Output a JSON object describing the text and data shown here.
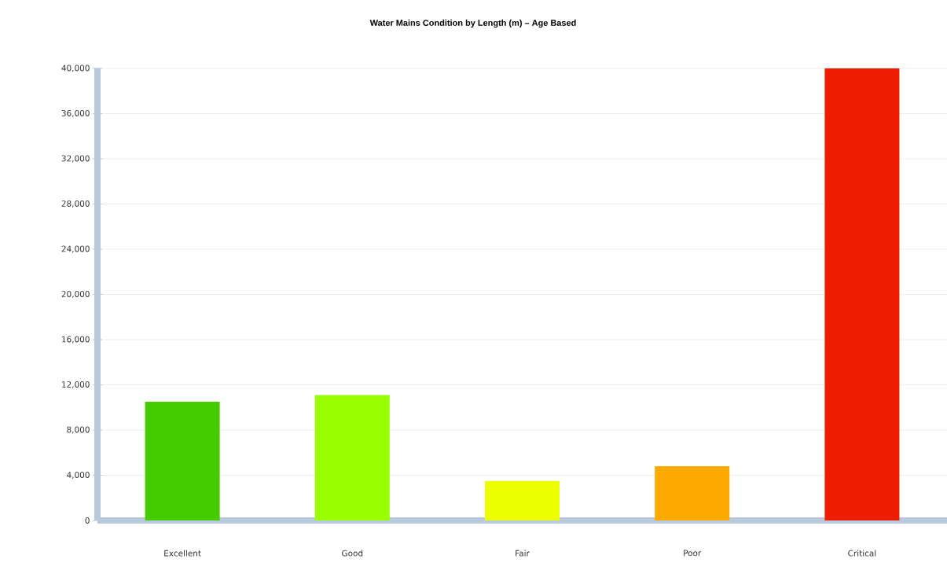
{
  "chart_data": {
    "type": "bar",
    "title": "Water Mains Condition by Length (m) – Age Based",
    "categories": [
      "Excellent",
      "Good",
      "Fair",
      "Poor",
      "Critical"
    ],
    "values": [
      10500,
      11100,
      3500,
      4800,
      40000
    ],
    "colors": [
      "#44cc00",
      "#99ff00",
      "#eeff00",
      "#ffaa00",
      "#ee1c00"
    ],
    "ylim": [
      0,
      40000
    ],
    "yticks": [
      {
        "value": 0,
        "label": "0"
      },
      {
        "value": 4000,
        "label": "4,000"
      },
      {
        "value": 8000,
        "label": "8,000"
      },
      {
        "value": 12000,
        "label": "12,000"
      },
      {
        "value": 16000,
        "label": "16,000"
      },
      {
        "value": 20000,
        "label": "20,000"
      },
      {
        "value": 24000,
        "label": "24,000"
      },
      {
        "value": 28000,
        "label": "28,000"
      },
      {
        "value": 32000,
        "label": "32,000"
      },
      {
        "value": 36000,
        "label": "36,000"
      },
      {
        "value": 40000,
        "label": "40,000"
      }
    ],
    "grid": "y"
  }
}
